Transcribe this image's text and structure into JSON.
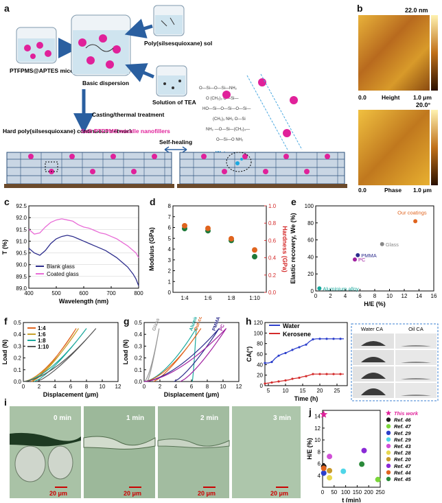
{
  "panel_letters": [
    "a",
    "b",
    "c",
    "d",
    "e",
    "f",
    "g",
    "h",
    "i",
    "j"
  ],
  "panel_a": {
    "labels": {
      "micelle": "PTFPMS@APTES micelle",
      "basic_dispersion": "Basic dispersion",
      "sol": "Poly(silsesquioxane) sol",
      "tea": "Solution of TEA",
      "casting": "Casting/thermal treatment",
      "hard_network": "Hard poly(silsesquioxane) continuous network",
      "soft_fillers": "Soft PTFPMS micelle nanofillers",
      "self_healing": "Self-healing",
      "water_vapor": "Water vapor"
    },
    "colors": {
      "magenta": "#e0219a",
      "network": "#2a4f7a",
      "substrate": "#6b4a2b"
    }
  },
  "panel_b": {
    "height_max": "22.0 nm",
    "phase_max": "20.0°",
    "height_label": "Height",
    "phase_label": "Phase",
    "scale_start": "0.0",
    "scale_end": "1.0 μm"
  },
  "panel_i": {
    "times": [
      "0 min",
      "1 min",
      "2 min",
      "3 min"
    ],
    "scale": "20 μm"
  },
  "chart_data": [
    {
      "id": "c",
      "type": "line",
      "xlabel": "Wavelength (nm)",
      "ylabel": "T (%)",
      "xlim": [
        400,
        800
      ],
      "ylim": [
        89.0,
        92.5
      ],
      "xticks": [
        400,
        500,
        600,
        700,
        800
      ],
      "yticks": [
        89.0,
        89.5,
        90.0,
        90.5,
        91.0,
        91.5,
        92.0,
        92.5
      ],
      "series": [
        {
          "name": "Blank glass",
          "color": "#2c2c8c",
          "x": [
            400,
            420,
            440,
            460,
            480,
            500,
            520,
            540,
            560,
            580,
            600,
            620,
            640,
            660,
            680,
            700,
            720,
            740,
            760,
            780,
            790,
            800
          ],
          "y": [
            90.7,
            90.5,
            90.4,
            90.6,
            90.9,
            91.1,
            91.2,
            91.25,
            91.2,
            91.1,
            91.0,
            90.9,
            90.8,
            90.7,
            90.6,
            90.45,
            90.3,
            90.1,
            89.9,
            89.6,
            89.4,
            89.1
          ]
        },
        {
          "name": "Coated glass",
          "color": "#e86ad6",
          "x": [
            400,
            420,
            440,
            460,
            480,
            500,
            520,
            540,
            560,
            580,
            600,
            620,
            640,
            660,
            680,
            700,
            720,
            740,
            760,
            780,
            790,
            800
          ],
          "y": [
            91.5,
            91.3,
            91.35,
            91.6,
            91.8,
            91.9,
            91.95,
            91.9,
            91.85,
            91.7,
            91.6,
            91.55,
            91.45,
            91.35,
            91.3,
            91.2,
            91.1,
            90.95,
            90.8,
            90.6,
            90.5,
            90.3
          ]
        }
      ]
    },
    {
      "id": "d",
      "type": "scatter",
      "xlabel": "",
      "ylabel": "Modulus (GPa)",
      "y2label": "Hardness (GPa)",
      "categories": [
        "1:4",
        "1:6",
        "1:8",
        "1:10"
      ],
      "ylim": [
        0,
        8
      ],
      "y2lim": [
        0,
        1.0
      ],
      "yticks": [
        0,
        1,
        2,
        3,
        4,
        5,
        6,
        7,
        8
      ],
      "y2ticks": [
        0.0,
        0.2,
        0.4,
        0.6,
        0.8,
        1.0
      ],
      "series": [
        {
          "name": "Modulus",
          "color": "#1f7a3a",
          "values": [
            5.9,
            5.7,
            4.8,
            3.3
          ]
        },
        {
          "name": "Hardness",
          "color": "#e0641e",
          "values": [
            0.77,
            0.74,
            0.62,
            0.49
          ]
        }
      ]
    },
    {
      "id": "e",
      "type": "scatter",
      "xlabel": "H/E (%)",
      "ylabel": "Elastic recovery, We (%)",
      "xlim": [
        0,
        16
      ],
      "ylim": [
        0,
        100
      ],
      "xticks": [
        0,
        2,
        4,
        6,
        8,
        10,
        12,
        14,
        16
      ],
      "yticks": [
        0,
        20,
        40,
        60,
        80,
        100
      ],
      "points": [
        {
          "label": "Our coatings",
          "x": 13.5,
          "y": 82,
          "color": "#e0641e"
        },
        {
          "label": "Glass",
          "x": 9.0,
          "y": 55,
          "color": "#888888"
        },
        {
          "label": "PMMA",
          "x": 5.7,
          "y": 42,
          "color": "#2c2c8c"
        },
        {
          "label": "PC",
          "x": 5.3,
          "y": 37,
          "color": "#a020a0"
        },
        {
          "label": "Aluminium alloy",
          "x": 0.5,
          "y": 3,
          "color": "#1aa89c"
        }
      ]
    },
    {
      "id": "f",
      "type": "line",
      "xlabel": "Displacement (μm)",
      "ylabel": "Load (N)",
      "xlim": [
        0,
        12
      ],
      "ylim": [
        0,
        0.5
      ],
      "xticks": [
        0,
        2,
        4,
        6,
        8,
        10,
        12
      ],
      "yticks": [
        0.0,
        0.1,
        0.2,
        0.3,
        0.4,
        0.5
      ],
      "series": [
        {
          "name": "1:4",
          "color": "#e0641e",
          "max_disp": 6.7,
          "start_disp": 1.0
        },
        {
          "name": "1:6",
          "color": "#c8a02a",
          "max_disp": 7.0,
          "start_disp": 1.1
        },
        {
          "name": "1:8",
          "color": "#1aa89c",
          "max_disp": 8.0,
          "start_disp": 1.4
        },
        {
          "name": "1:10",
          "color": "#555555",
          "max_disp": 9.2,
          "start_disp": 1.7
        }
      ],
      "max_load": 0.45
    },
    {
      "id": "g",
      "type": "line",
      "xlabel": "Displacement (μm)",
      "ylabel": "Load (N)",
      "xlim": [
        0,
        12
      ],
      "ylim": [
        0,
        0.5
      ],
      "xticks": [
        0,
        2,
        4,
        6,
        8,
        10,
        12
      ],
      "yticks": [
        0.0,
        0.1,
        0.2,
        0.3,
        0.4,
        0.5
      ],
      "series": [
        {
          "name": "Glass",
          "color": "#999999",
          "max_disp": 1.9,
          "start_disp": 0.4
        },
        {
          "name": "Aluminium alloy",
          "color": "#1aa89c",
          "max_disp": 6.6,
          "start_disp": 6.1
        },
        {
          "name": "Our coating",
          "color": "#e0641e",
          "max_disp": 7.2,
          "start_disp": 1.2
        },
        {
          "name": "PMMA",
          "color": "#2c2c8c",
          "max_disp": 9.5,
          "start_disp": 3.8
        },
        {
          "name": "PC",
          "color": "#a020a0",
          "max_disp": 10.4,
          "start_disp": 4.6
        }
      ],
      "max_load": 0.45
    },
    {
      "id": "h",
      "type": "line",
      "xlabel": "Time (h)",
      "ylabel": "CA(°)",
      "xlim": [
        4,
        28
      ],
      "ylim": [
        0,
        120
      ],
      "xticks": [
        5,
        10,
        15,
        20,
        25
      ],
      "yticks": [
        0,
        20,
        40,
        60,
        80,
        100,
        120
      ],
      "series": [
        {
          "name": "Water",
          "color": "#2c3fcc",
          "x": [
            4,
            5,
            6,
            7,
            8,
            9,
            10,
            11,
            12,
            13,
            14,
            15,
            16,
            17,
            18,
            19,
            20,
            21,
            22,
            23,
            24,
            25,
            26,
            27
          ],
          "y": [
            43,
            43,
            45,
            52,
            57,
            60,
            62,
            65,
            68,
            71,
            73,
            76,
            78,
            84,
            88,
            89,
            89,
            89,
            89,
            89,
            89,
            89,
            89,
            89
          ]
        },
        {
          "name": "Kerosene",
          "color": "#d42a2a",
          "x": [
            4,
            5,
            6,
            7,
            8,
            9,
            10,
            11,
            12,
            13,
            14,
            15,
            16,
            17,
            18,
            19,
            20,
            21,
            22,
            23,
            24,
            25,
            26,
            27
          ],
          "y": [
            4,
            5,
            6,
            7,
            8,
            9,
            10,
            11,
            13,
            14,
            15,
            17,
            18,
            20,
            22,
            22,
            22,
            22,
            22,
            22,
            22,
            22,
            22,
            22
          ]
        }
      ],
      "inset_headers": [
        "Water CA",
        "Oil CA"
      ]
    },
    {
      "id": "j",
      "type": "scatter",
      "xlabel": "t (min)",
      "ylabel": "H/E (%)",
      "xlim": [
        0,
        250
      ],
      "ylim": [
        2,
        15
      ],
      "xticks": [
        0,
        50,
        100,
        150,
        200,
        250
      ],
      "yticks": [
        4,
        6,
        8,
        10,
        12,
        14
      ],
      "points": [
        {
          "label": "This work",
          "x": 5,
          "y": 14.3,
          "color": "#e0219a",
          "marker": "star"
        },
        {
          "label": "Ref. 46",
          "x": 5,
          "y": 5.5,
          "color": "#1a1a1a"
        },
        {
          "label": "Ref. 47",
          "x": 240,
          "y": 3.3,
          "color": "#7ad63a"
        },
        {
          "label": "Ref. 29",
          "x": 5,
          "y": 4.4,
          "color": "#2c3fcc"
        },
        {
          "label": "Ref. 29",
          "x": 90,
          "y": 4.7,
          "color": "#4fd6e8"
        },
        {
          "label": "Ref. 43",
          "x": 30,
          "y": 7.2,
          "color": "#d04fd6"
        },
        {
          "label": "Ref. 28",
          "x": 30,
          "y": 3.6,
          "color": "#e8d84f"
        },
        {
          "label": "Ref. 20",
          "x": 30,
          "y": 4.8,
          "color": "#c89a2a"
        },
        {
          "label": "Ref. 47",
          "x": 180,
          "y": 8.2,
          "color": "#8a2ad6"
        },
        {
          "label": "Ref. 44",
          "x": 5,
          "y": 5.2,
          "color": "#e0641e"
        },
        {
          "label": "Ref. 45",
          "x": 170,
          "y": 5.9,
          "color": "#2a8a3a"
        }
      ],
      "legend": [
        {
          "label": "This work",
          "color": "#e0219a",
          "marker": "star"
        },
        {
          "label": "Ref. 46",
          "color": "#1a1a1a"
        },
        {
          "label": "Ref. 47",
          "color": "#7ad63a"
        },
        {
          "label": "Ref. 29",
          "color": "#2c3fcc"
        },
        {
          "label": "Ref. 29",
          "color": "#4fd6e8"
        },
        {
          "label": "Ref. 43",
          "color": "#d04fd6"
        },
        {
          "label": "Ref. 28",
          "color": "#e8d84f"
        },
        {
          "label": "Ref. 20",
          "color": "#c89a2a"
        },
        {
          "label": "Ref. 47",
          "color": "#8a2ad6"
        },
        {
          "label": "Ref. 44",
          "color": "#e0641e"
        },
        {
          "label": "Ref. 45",
          "color": "#2a8a3a"
        }
      ]
    }
  ]
}
